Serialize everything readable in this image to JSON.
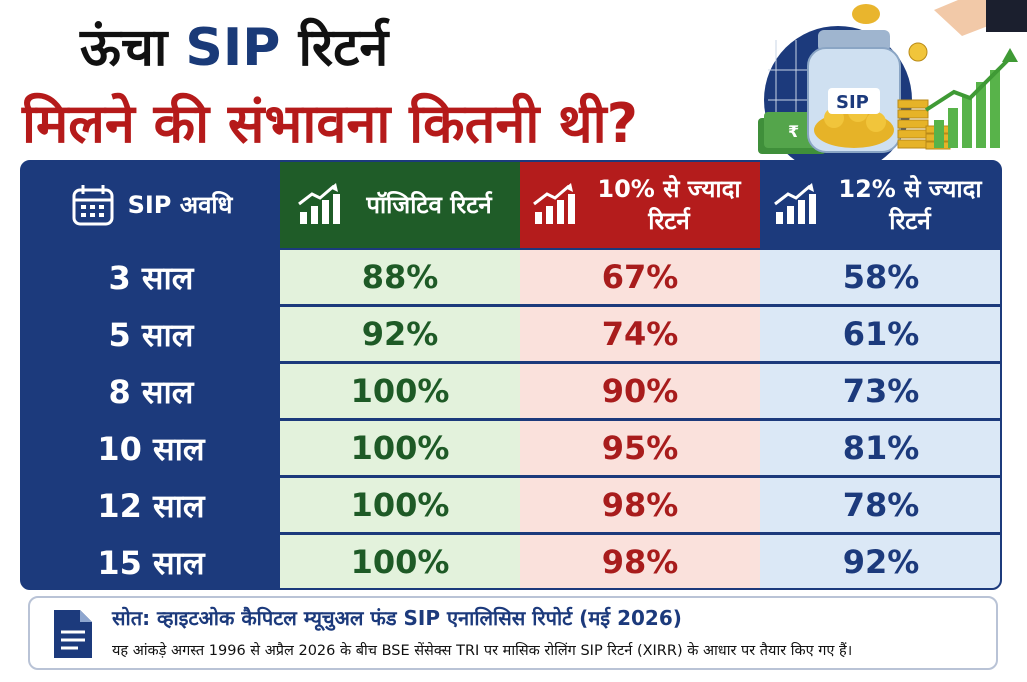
{
  "title": {
    "line1_prefix": "ऊंचा ",
    "line1_highlight": "SIP",
    "line1_suffix": " रिटर्न",
    "line2": "मिलने की संभावना कितनी थी?"
  },
  "illustration": {
    "jar_label": "SIP",
    "note_symbol": "₹"
  },
  "colors": {
    "navy": "#1c3a7c",
    "green": "#1f5c28",
    "red": "#b41c1c",
    "light_green": "#e3f2dc",
    "light_red": "#fae1dc",
    "light_blue": "#dbe8f6"
  },
  "chart_data": {
    "type": "table",
    "columns": [
      {
        "label": "SIP अवधि",
        "icon": "calendar-icon"
      },
      {
        "label": "पॉजिटिव रिटर्न",
        "icon": "growth-chart-icon"
      },
      {
        "label": "10% से ज्यादा रिटर्न",
        "icon": "growth-chart-icon"
      },
      {
        "label": "12% से ज्यादा रिटर्न",
        "icon": "growth-chart-icon"
      }
    ],
    "rows": [
      {
        "period": "3 साल",
        "positive": "88%",
        "above10": "67%",
        "above12": "58%"
      },
      {
        "period": "5 साल",
        "positive": "92%",
        "above10": "74%",
        "above12": "61%"
      },
      {
        "period": "8 साल",
        "positive": "100%",
        "above10": "90%",
        "above12": "73%"
      },
      {
        "period": "10 साल",
        "positive": "100%",
        "above10": "95%",
        "above12": "81%"
      },
      {
        "period": "12 साल",
        "positive": "100%",
        "above10": "98%",
        "above12": "78%"
      },
      {
        "period": "15 साल",
        "positive": "100%",
        "above10": "98%",
        "above12": "92%"
      }
    ]
  },
  "source": {
    "icon": "document-icon",
    "title": "सोत: व्हाइटओक कैपिटल म्यूचुअल फंड SIP एनालिसिस रिपोर्ट (मई 2026)",
    "note": "यह आंकड़े अगस्त 1996 से अप्रैल 2026 के बीच BSE सेंसेक्स TRI पर मासिक रोलिंग SIP रिटर्न (XIRR) के आधार पर तैयार किए गए हैं।"
  }
}
